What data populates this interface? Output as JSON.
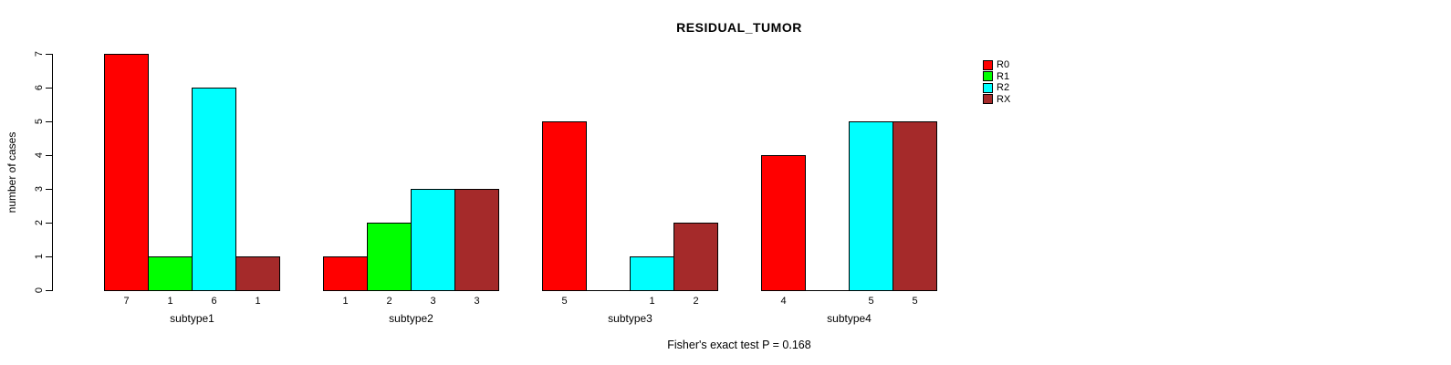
{
  "chart_data": {
    "type": "bar",
    "title": "RESIDUAL_TUMOR",
    "ylabel": "number of cases",
    "xlabel": "",
    "categories": [
      "subtype1",
      "subtype2",
      "subtype3",
      "subtype4"
    ],
    "series": [
      {
        "name": "R0",
        "color": "#FF0000",
        "values": [
          7,
          1,
          5,
          4
        ]
      },
      {
        "name": "R1",
        "color": "#00FF00",
        "values": [
          1,
          2,
          0,
          0
        ]
      },
      {
        "name": "R2",
        "color": "#00FFFF",
        "values": [
          6,
          3,
          1,
          5
        ]
      },
      {
        "name": "RX",
        "color": "#A52A2A",
        "values": [
          1,
          3,
          2,
          5
        ]
      }
    ],
    "ylim": [
      0,
      7
    ],
    "yticks": [
      0,
      1,
      2,
      3,
      4,
      5,
      6,
      7
    ],
    "bar_value_labels_shown": true,
    "zero_values_unlabeled": true,
    "grid": false,
    "legend_position": "top-right",
    "footnote": "Fisher's exact test P = 0.168",
    "background_color": "#FFFFFF",
    "axis_color": "#000000"
  }
}
